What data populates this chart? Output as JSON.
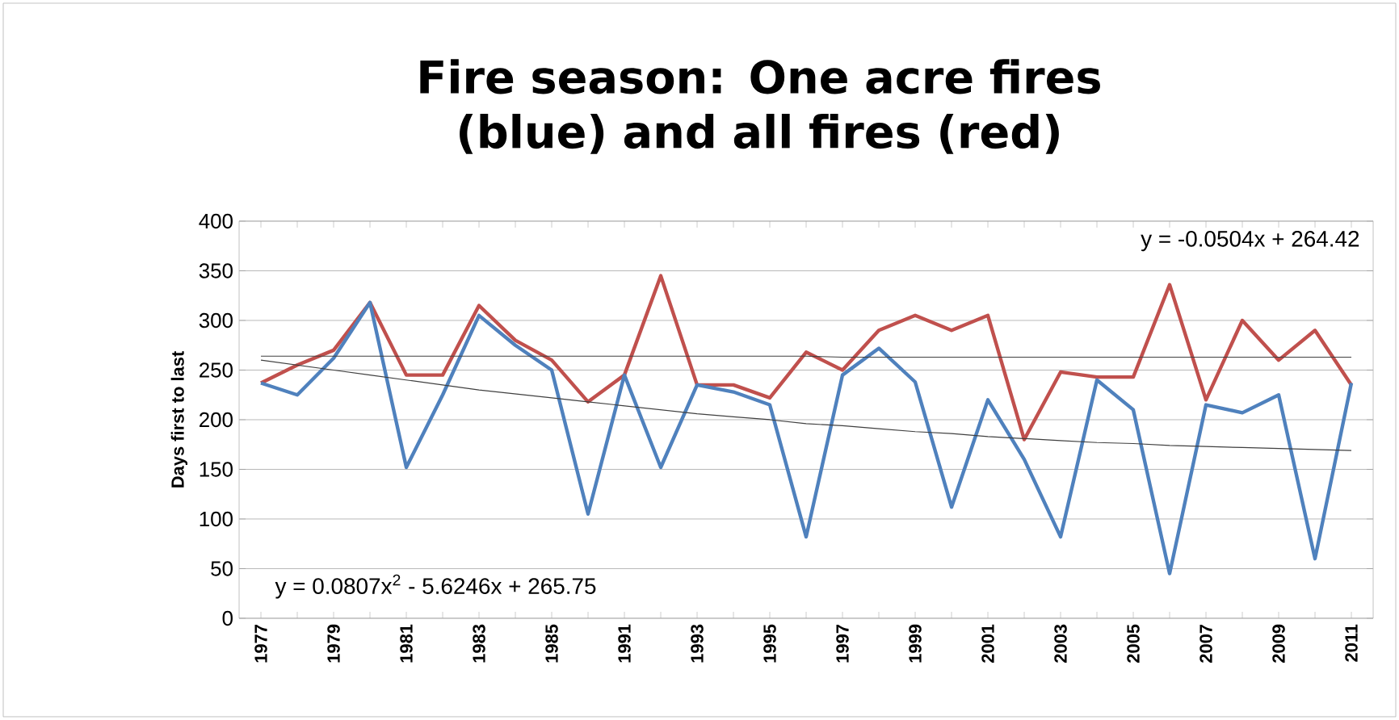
{
  "chart_data": {
    "type": "line",
    "title": "Fire season: One acre fires (blue) and all fires (red)",
    "ylabel": "Days first to last",
    "categories": [
      "1977",
      null,
      "1979",
      null,
      "1981",
      null,
      "1983",
      null,
      "1985",
      null,
      "1991",
      null,
      "1993",
      null,
      "1995",
      null,
      "1997",
      null,
      "1999",
      null,
      "2001",
      null,
      "2003",
      null,
      "2005",
      null,
      "2007",
      null,
      "2009",
      null,
      "2011"
    ],
    "series": [
      {
        "color": "#c0504d",
        "values": [
          237,
          255,
          270,
          318,
          245,
          245,
          315,
          280,
          260,
          218,
          245,
          345,
          235,
          235,
          222,
          268,
          250,
          290,
          305,
          290,
          305,
          180,
          248,
          243,
          243,
          336,
          220,
          300,
          260,
          290,
          235
        ]
      },
      {
        "color": "#4f81bd",
        "values": [
          237,
          225,
          262,
          318,
          152,
          225,
          305,
          275,
          250,
          105,
          245,
          152,
          235,
          228,
          215,
          82,
          245,
          272,
          238,
          112,
          220,
          160,
          82,
          240,
          210,
          45,
          215,
          207,
          225,
          60,
          237
        ]
      },
      {
        "color": "#404040",
        "type": "line",
        "values": [
          264,
          264,
          264,
          264,
          264,
          264,
          264,
          264,
          264,
          264,
          264,
          264,
          264,
          264,
          264,
          264,
          263,
          263,
          263,
          263,
          263,
          263,
          263,
          263,
          263,
          263,
          263,
          263,
          263,
          263,
          263
        ]
      },
      {
        "color": "#404040",
        "type": "line",
        "values": [
          260,
          255,
          250,
          245,
          240,
          235,
          230,
          226,
          222,
          218,
          214,
          210,
          206,
          203,
          200,
          196,
          194,
          191,
          188,
          186,
          183,
          181,
          179,
          177,
          176,
          174,
          173,
          172,
          171,
          170,
          169
        ]
      }
    ],
    "ylim": [
      0,
      400
    ],
    "yticks": [
      0,
      50,
      100,
      150,
      200,
      250,
      300,
      350,
      400
    ],
    "grid": "y",
    "annotations": [
      "y = -0.0504x + 264.42",
      "y = 0.0807x$^{2}$ - 5.6246x + 265.75"
    ]
  }
}
